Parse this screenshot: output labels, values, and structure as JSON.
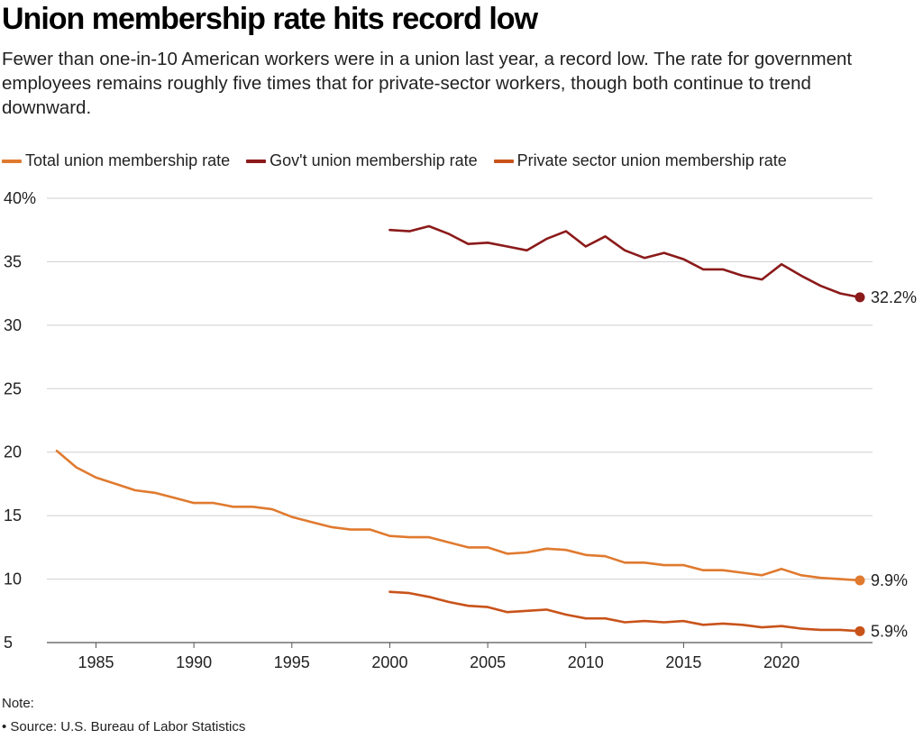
{
  "title": "Union membership rate hits record low",
  "subtitle": "Fewer than one-in-10 American workers were in a union last year, a record low. The rate for government employees remains roughly five times that for private-sector workers, though both continue to trend downward.",
  "note": {
    "label": "Note:",
    "source": "• Source: U.S. Bureau of Labor Statistics"
  },
  "chart_data": {
    "type": "line",
    "title": "Union membership rate hits record low",
    "xlabel": "",
    "ylabel": "",
    "xlim": [
      1983,
      2024
    ],
    "ylim": [
      5,
      40
    ],
    "grid": true,
    "legend_position": "top-left",
    "x_ticks": [
      1985,
      1990,
      1995,
      2000,
      2005,
      2010,
      2015,
      2020
    ],
    "y_ticks": [
      5,
      10,
      15,
      20,
      25,
      30,
      35,
      40
    ],
    "y_tick_labels": [
      "5",
      "10",
      "15",
      "20",
      "25",
      "30",
      "35",
      "40%"
    ],
    "series": [
      {
        "name": "Total union membership rate",
        "color": "#e07a2f",
        "end_label": "9.9%",
        "x": [
          1983,
          1984,
          1985,
          1986,
          1987,
          1988,
          1989,
          1990,
          1991,
          1992,
          1993,
          1994,
          1995,
          1996,
          1997,
          1998,
          1999,
          2000,
          2001,
          2002,
          2003,
          2004,
          2005,
          2006,
          2007,
          2008,
          2009,
          2010,
          2011,
          2012,
          2013,
          2014,
          2015,
          2016,
          2017,
          2018,
          2019,
          2020,
          2021,
          2022,
          2023,
          2024
        ],
        "values": [
          20.1,
          18.8,
          18.0,
          17.5,
          17.0,
          16.8,
          16.4,
          16.0,
          16.0,
          15.7,
          15.7,
          15.5,
          14.9,
          14.5,
          14.1,
          13.9,
          13.9,
          13.4,
          13.3,
          13.3,
          12.9,
          12.5,
          12.5,
          12.0,
          12.1,
          12.4,
          12.3,
          11.9,
          11.8,
          11.3,
          11.3,
          11.1,
          11.1,
          10.7,
          10.7,
          10.5,
          10.3,
          10.8,
          10.3,
          10.1,
          10.0,
          9.9
        ]
      },
      {
        "name": "Gov't union membership rate",
        "color": "#8b1a1a",
        "end_label": "32.2%",
        "x": [
          2000,
          2001,
          2002,
          2003,
          2004,
          2005,
          2006,
          2007,
          2008,
          2009,
          2010,
          2011,
          2012,
          2013,
          2014,
          2015,
          2016,
          2017,
          2018,
          2019,
          2020,
          2021,
          2022,
          2023,
          2024
        ],
        "values": [
          37.5,
          37.4,
          37.8,
          37.2,
          36.4,
          36.5,
          36.2,
          35.9,
          36.8,
          37.4,
          36.2,
          37.0,
          35.9,
          35.3,
          35.7,
          35.2,
          34.4,
          34.4,
          33.9,
          33.6,
          34.8,
          33.9,
          33.1,
          32.5,
          32.2
        ]
      },
      {
        "name": "Private sector union membership rate",
        "color": "#c8531a",
        "end_label": "5.9%",
        "x": [
          2000,
          2001,
          2002,
          2003,
          2004,
          2005,
          2006,
          2007,
          2008,
          2009,
          2010,
          2011,
          2012,
          2013,
          2014,
          2015,
          2016,
          2017,
          2018,
          2019,
          2020,
          2021,
          2022,
          2023,
          2024
        ],
        "values": [
          9.0,
          8.9,
          8.6,
          8.2,
          7.9,
          7.8,
          7.4,
          7.5,
          7.6,
          7.2,
          6.9,
          6.9,
          6.6,
          6.7,
          6.6,
          6.7,
          6.4,
          6.5,
          6.4,
          6.2,
          6.3,
          6.1,
          6.0,
          6.0,
          5.9
        ]
      }
    ]
  }
}
